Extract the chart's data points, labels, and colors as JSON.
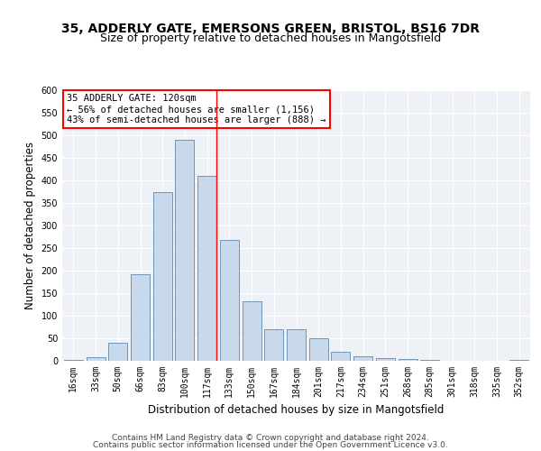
{
  "title_line1": "35, ADDERLY GATE, EMERSONS GREEN, BRISTOL, BS16 7DR",
  "title_line2": "Size of property relative to detached houses in Mangotsfield",
  "xlabel": "Distribution of detached houses by size in Mangotsfield",
  "ylabel": "Number of detached properties",
  "categories": [
    "16sqm",
    "33sqm",
    "50sqm",
    "66sqm",
    "83sqm",
    "100sqm",
    "117sqm",
    "133sqm",
    "150sqm",
    "167sqm",
    "184sqm",
    "201sqm",
    "217sqm",
    "234sqm",
    "251sqm",
    "268sqm",
    "285sqm",
    "301sqm",
    "318sqm",
    "335sqm",
    "352sqm"
  ],
  "values": [
    3,
    8,
    40,
    193,
    375,
    490,
    410,
    268,
    132,
    70,
    70,
    50,
    20,
    10,
    7,
    5,
    3,
    1,
    0,
    0,
    2
  ],
  "bar_color": "#c9d9ec",
  "bar_edge_color": "#7096b8",
  "annotation_line1": "35 ADDERLY GATE: 120sqm",
  "annotation_line2": "← 56% of detached houses are smaller (1,156)",
  "annotation_line3": "43% of semi-detached houses are larger (888) →",
  "vline_x": 6.42,
  "vline_color": "red",
  "ylim": [
    0,
    600
  ],
  "yticks": [
    0,
    50,
    100,
    150,
    200,
    250,
    300,
    350,
    400,
    450,
    500,
    550,
    600
  ],
  "footer_line1": "Contains HM Land Registry data © Crown copyright and database right 2024.",
  "footer_line2": "Contains public sector information licensed under the Open Government Licence v3.0.",
  "plot_bg_color": "#eef2f7",
  "title1_fontsize": 10,
  "title2_fontsize": 9,
  "axis_label_fontsize": 8.5,
  "tick_fontsize": 7,
  "annot_fontsize": 7.5,
  "footer_fontsize": 6.5
}
